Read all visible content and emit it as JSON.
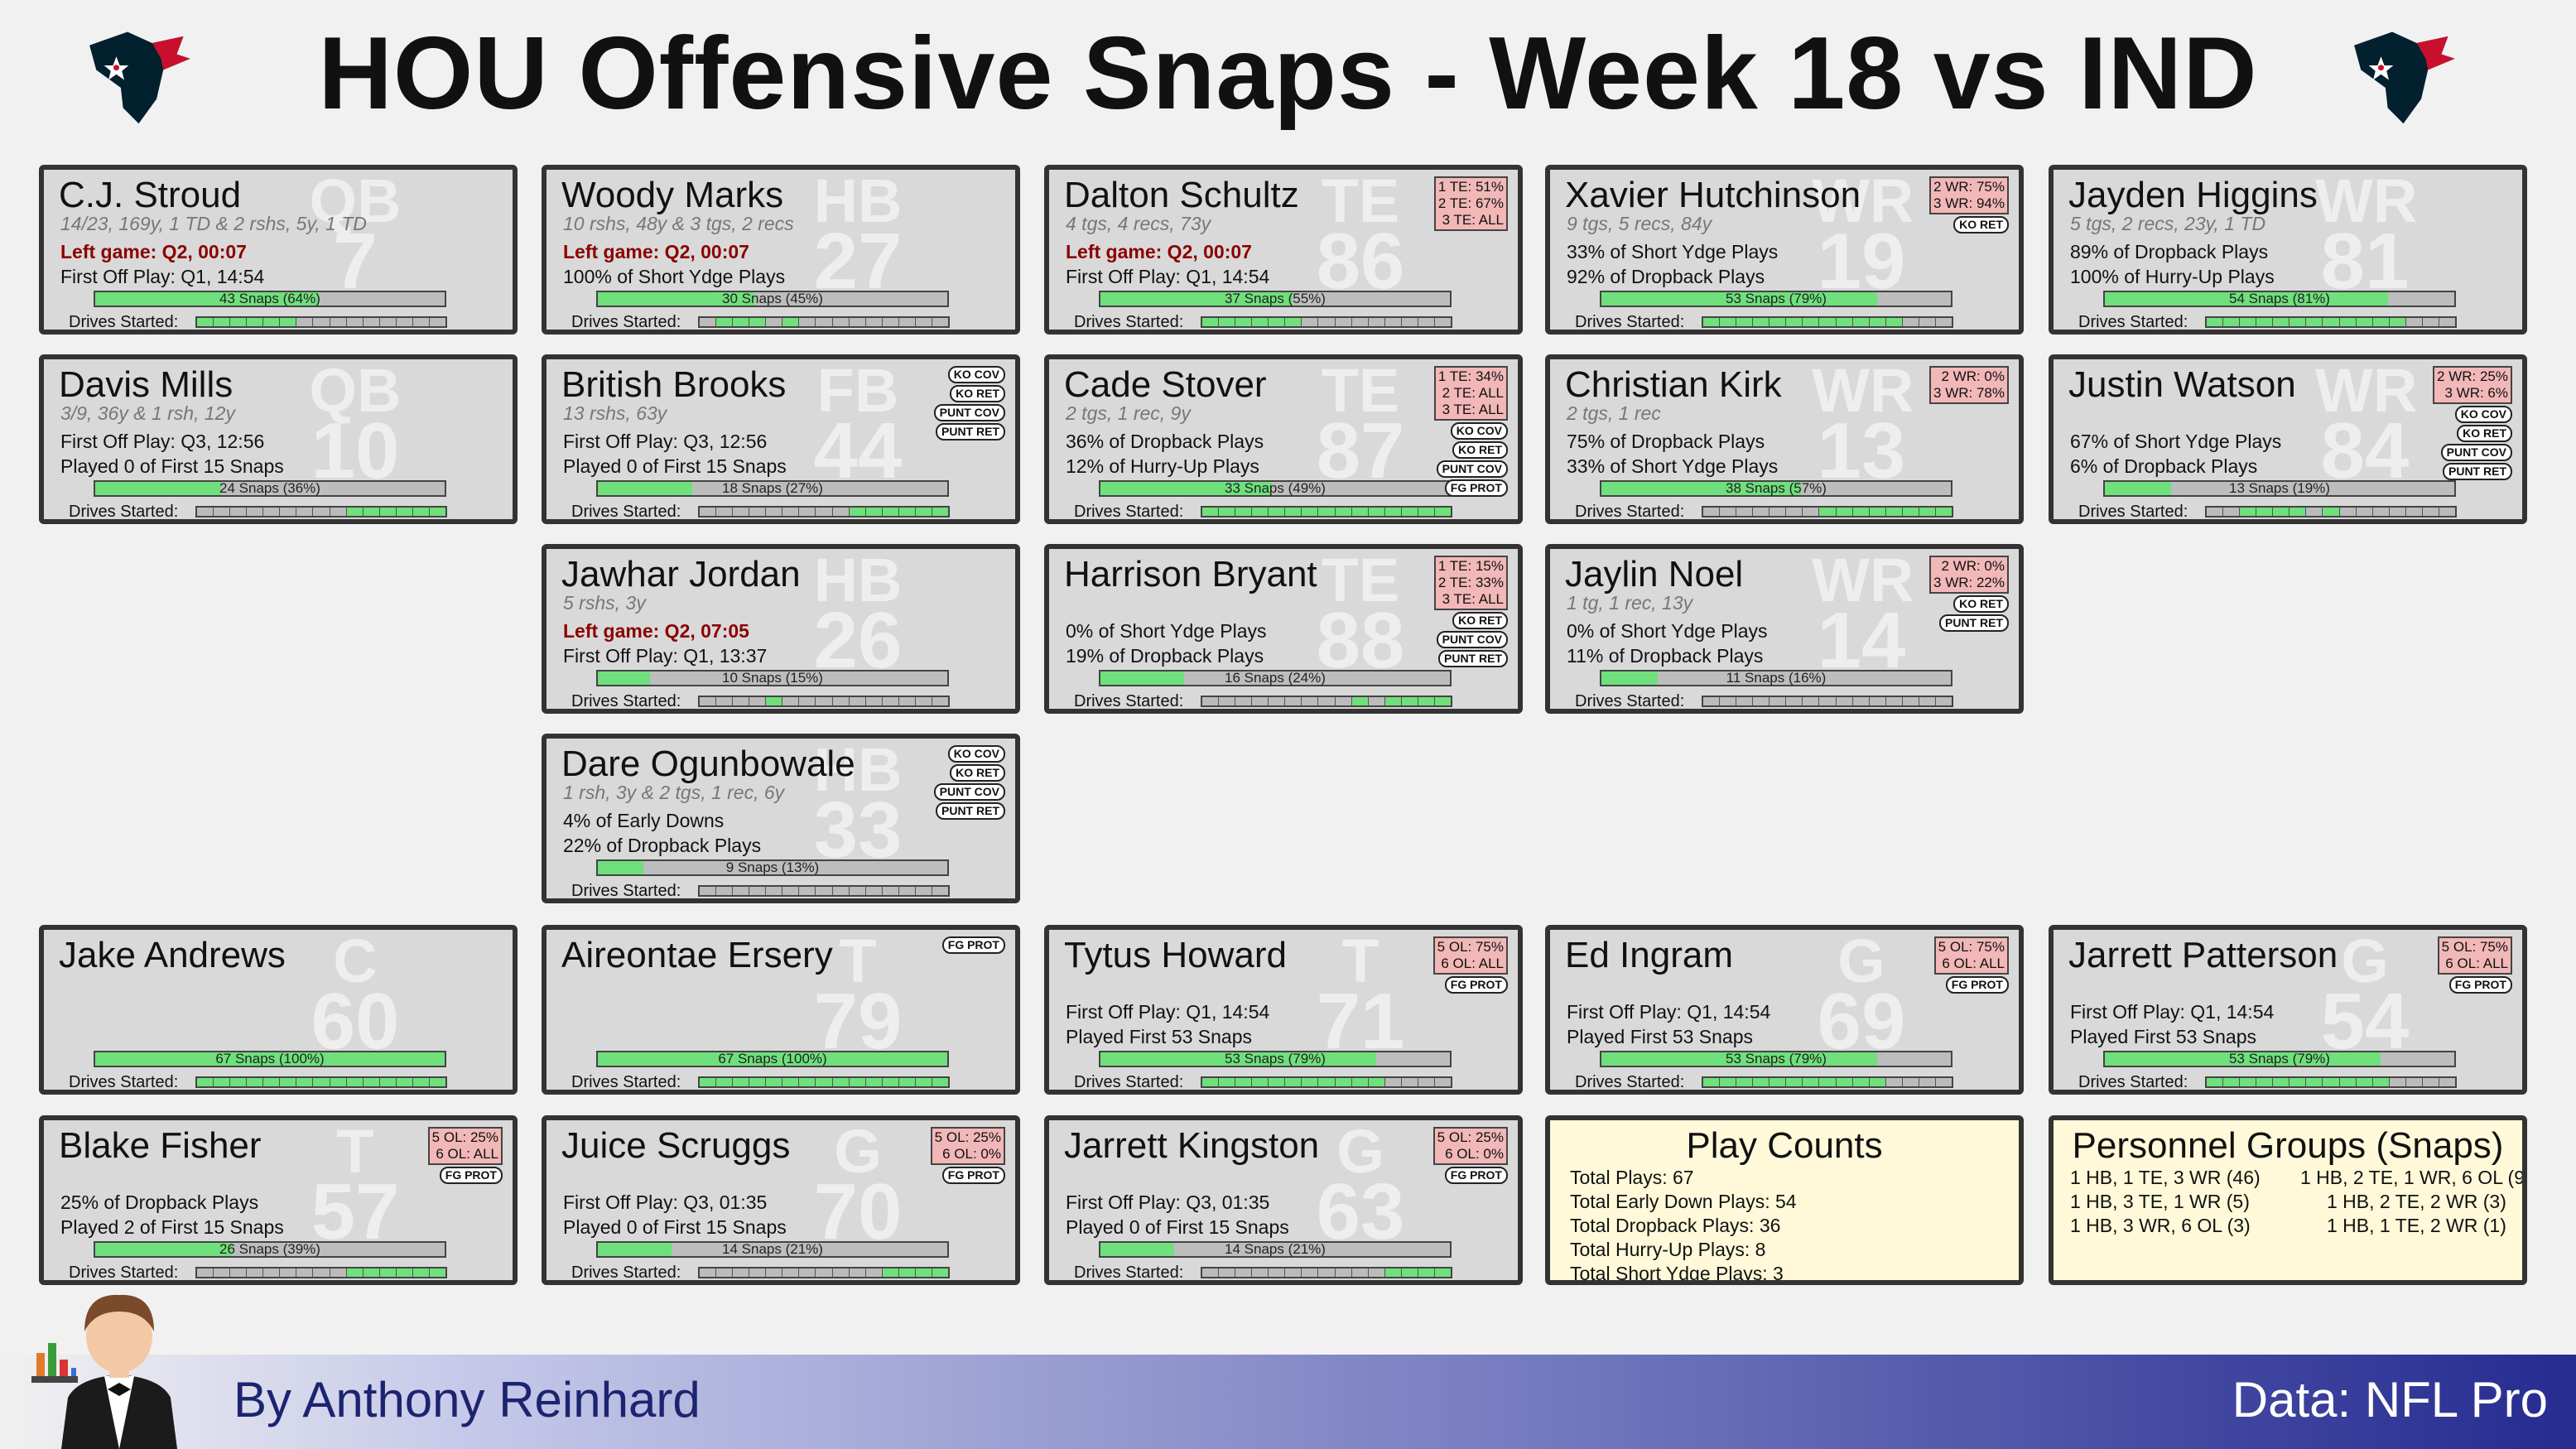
{
  "title": "HOU Offensive Snaps - Week 18 vs IND",
  "colors": {
    "snap_fill": "#6fe07c",
    "card_bg": "#d9d9d9",
    "pct_box": "#f2b7b7",
    "left_game": "#8b0000",
    "summary_bg": "#fff9d9",
    "footer_dark": "#262c90"
  },
  "players": [
    {
      "name": "C.J. Stroud",
      "pos": "QB",
      "num": "7",
      "lines": [
        {
          "t": "14/23, 169y, 1 TD & 2 rshs, 5y, 1 TD",
          "s": "stat"
        },
        {
          "t": "Left game: Q2, 00:07",
          "s": "left"
        },
        {
          "t": "First Off Play: Q1, 14:54",
          "s": "n"
        }
      ],
      "snaps": "43 Snaps (64%)",
      "snap_pct": 64,
      "drives": [
        1,
        1,
        1,
        1,
        1,
        1,
        0,
        0,
        0,
        0,
        0,
        0,
        0,
        0,
        0
      ],
      "pct_box": [],
      "badges": []
    },
    {
      "name": "Woody Marks",
      "pos": "HB",
      "num": "27",
      "lines": [
        {
          "t": "10 rshs, 48y & 3 tgs, 2 recs",
          "s": "stat"
        },
        {
          "t": "Left game: Q2, 00:07",
          "s": "left"
        },
        {
          "t": "100% of Short Ydge Plays",
          "s": "n"
        }
      ],
      "snaps": "30 Snaps (45%)",
      "snap_pct": 45,
      "drives": [
        0,
        1,
        1,
        1,
        0,
        1,
        0,
        0,
        0,
        0,
        0,
        0,
        0,
        0,
        0
      ],
      "pct_box": [],
      "badges": []
    },
    {
      "name": "Dalton Schultz",
      "pos": "TE",
      "num": "86",
      "lines": [
        {
          "t": "4 tgs, 4 recs, 73y",
          "s": "stat"
        },
        {
          "t": "Left game: Q2, 00:07",
          "s": "left"
        },
        {
          "t": "First Off Play: Q1, 14:54",
          "s": "n"
        }
      ],
      "snaps": "37 Snaps (55%)",
      "snap_pct": 55,
      "drives": [
        1,
        1,
        1,
        1,
        1,
        1,
        0,
        0,
        0,
        0,
        0,
        0,
        0,
        0,
        0
      ],
      "pct_box": [
        "1 TE: 51%",
        "2 TE: 67%",
        "3 TE: ALL"
      ],
      "badges": []
    },
    {
      "name": "Xavier Hutchinson",
      "pos": "WR",
      "num": "19",
      "lines": [
        {
          "t": "9 tgs, 5 recs, 84y",
          "s": "stat"
        },
        {
          "t": "33% of Short Ydge Plays",
          "s": "n"
        },
        {
          "t": "92% of Dropback Plays",
          "s": "n"
        }
      ],
      "snaps": "53 Snaps (79%)",
      "snap_pct": 79,
      "drives": [
        1,
        1,
        1,
        1,
        1,
        1,
        1,
        1,
        1,
        1,
        1,
        1,
        0,
        0,
        0
      ],
      "pct_box": [
        "2 WR: 75%",
        "3 WR: 94%"
      ],
      "badges": [
        "KO RET"
      ]
    },
    {
      "name": "Jayden Higgins",
      "pos": "WR",
      "num": "81",
      "lines": [
        {
          "t": "5 tgs, 2 recs, 23y, 1 TD",
          "s": "stat"
        },
        {
          "t": "89% of Dropback Plays",
          "s": "n"
        },
        {
          "t": "100% of Hurry-Up Plays",
          "s": "n"
        }
      ],
      "snaps": "54 Snaps (81%)",
      "snap_pct": 81,
      "drives": [
        1,
        1,
        1,
        1,
        1,
        1,
        1,
        1,
        1,
        1,
        1,
        1,
        0,
        0,
        0
      ],
      "pct_box": [],
      "badges": []
    },
    {
      "name": "Davis Mills",
      "pos": "QB",
      "num": "10",
      "lines": [
        {
          "t": "3/9, 36y & 1 rsh, 12y",
          "s": "stat"
        },
        {
          "t": "First Off Play: Q3, 12:56",
          "s": "n"
        },
        {
          "t": "Played 0 of First 15 Snaps",
          "s": "n"
        }
      ],
      "snaps": "24 Snaps (36%)",
      "snap_pct": 36,
      "drives": [
        0,
        0,
        0,
        0,
        0,
        0,
        0,
        0,
        0,
        1,
        1,
        1,
        1,
        1,
        1
      ],
      "pct_box": [],
      "badges": []
    },
    {
      "name": "British Brooks",
      "pos": "FB",
      "num": "44",
      "lines": [
        {
          "t": "13 rshs, 63y",
          "s": "stat"
        },
        {
          "t": "First Off Play: Q3, 12:56",
          "s": "n"
        },
        {
          "t": "Played 0 of First 15 Snaps",
          "s": "n"
        }
      ],
      "snaps": "18 Snaps (27%)",
      "snap_pct": 27,
      "drives": [
        0,
        0,
        0,
        0,
        0,
        0,
        0,
        0,
        0,
        1,
        1,
        1,
        1,
        1,
        1
      ],
      "pct_box": [],
      "badges": [
        "KO COV",
        "KO RET",
        "PUNT COV",
        "PUNT RET"
      ]
    },
    {
      "name": "Cade Stover",
      "pos": "TE",
      "num": "87",
      "lines": [
        {
          "t": "2 tgs, 1 rec, 9y",
          "s": "stat"
        },
        {
          "t": "36% of Dropback Plays",
          "s": "n"
        },
        {
          "t": "12% of Hurry-Up Plays",
          "s": "n"
        }
      ],
      "snaps": "33 Snaps (49%)",
      "snap_pct": 49,
      "drives": [
        1,
        1,
        1,
        1,
        1,
        1,
        1,
        1,
        1,
        1,
        1,
        1,
        1,
        1,
        1
      ],
      "pct_box": [
        "1 TE: 34%",
        "2 TE: ALL",
        "3 TE: ALL"
      ],
      "badges": [
        "KO COV",
        "KO RET",
        "PUNT COV",
        "FG PROT"
      ]
    },
    {
      "name": "Christian Kirk",
      "pos": "WR",
      "num": "13",
      "lines": [
        {
          "t": "2 tgs, 1 rec",
          "s": "stat"
        },
        {
          "t": "75% of Dropback Plays",
          "s": "n"
        },
        {
          "t": "33% of Short Ydge Plays",
          "s": "n"
        }
      ],
      "snaps": "38 Snaps (57%)",
      "snap_pct": 57,
      "drives": [
        0,
        0,
        0,
        0,
        0,
        0,
        0,
        1,
        1,
        1,
        1,
        1,
        1,
        1,
        1
      ],
      "pct_box": [
        "2 WR:  0%",
        "3 WR: 78%"
      ],
      "badges": []
    },
    {
      "name": "Justin Watson",
      "pos": "WR",
      "num": "84",
      "lines": [
        {
          "t": "67% of Short Ydge Plays",
          "s": "n"
        },
        {
          "t": "6% of Dropback Plays",
          "s": "n"
        }
      ],
      "snaps": "13 Snaps (19%)",
      "snap_pct": 19,
      "drives": [
        0,
        0,
        1,
        1,
        1,
        1,
        0,
        1,
        0,
        0,
        0,
        0,
        0,
        0,
        0
      ],
      "pct_box": [
        "2 WR: 25%",
        "3 WR:  6%"
      ],
      "badges": [
        "KO COV",
        "KO RET",
        "PUNT COV",
        "PUNT RET"
      ]
    },
    {
      "name": "Jawhar Jordan",
      "pos": "HB",
      "num": "26",
      "lines": [
        {
          "t": "5 rshs, 3y",
          "s": "stat"
        },
        {
          "t": "Left game: Q2, 07:05",
          "s": "left"
        },
        {
          "t": "First Off Play: Q1, 13:37",
          "s": "n"
        }
      ],
      "snaps": "10 Snaps (15%)",
      "snap_pct": 15,
      "drives": [
        0,
        0,
        0,
        0,
        1,
        0,
        0,
        0,
        0,
        0,
        0,
        0,
        0,
        0,
        0
      ],
      "pct_box": [],
      "badges": []
    },
    {
      "name": "Harrison Bryant",
      "pos": "TE",
      "num": "88",
      "lines": [
        {
          "t": "0% of Short Ydge Plays",
          "s": "n"
        },
        {
          "t": "19% of Dropback Plays",
          "s": "n"
        }
      ],
      "snaps": "16 Snaps (24%)",
      "snap_pct": 24,
      "drives": [
        0,
        0,
        0,
        0,
        0,
        0,
        0,
        0,
        0,
        1,
        0,
        1,
        1,
        1,
        1
      ],
      "pct_box": [
        "1 TE: 15%",
        "2 TE: 33%",
        "3 TE: ALL"
      ],
      "badges": [
        "KO RET",
        "PUNT COV",
        "PUNT RET"
      ]
    },
    {
      "name": "Jaylin Noel",
      "pos": "WR",
      "num": "14",
      "lines": [
        {
          "t": "1 tg, 1 rec, 13y",
          "s": "stat"
        },
        {
          "t": "0% of Short Ydge Plays",
          "s": "n"
        },
        {
          "t": "11% of Dropback Plays",
          "s": "n"
        }
      ],
      "snaps": "11 Snaps (16%)",
      "snap_pct": 16,
      "drives": [
        0,
        0,
        0,
        0,
        0,
        0,
        0,
        0,
        0,
        0,
        0,
        0,
        0,
        0,
        0
      ],
      "pct_box": [
        "2 WR:  0%",
        "3 WR: 22%"
      ],
      "badges": [
        "KO RET",
        "PUNT RET"
      ]
    },
    {
      "name": "Dare Ogunbowale",
      "pos": "HB",
      "num": "33",
      "lines": [
        {
          "t": "1 rsh, 3y & 2 tgs, 1 rec, 6y",
          "s": "stat"
        },
        {
          "t": "4% of Early Downs",
          "s": "n"
        },
        {
          "t": "22% of Dropback Plays",
          "s": "n"
        }
      ],
      "snaps": "9 Snaps (13%)",
      "snap_pct": 13,
      "drives": [
        0,
        0,
        0,
        0,
        0,
        0,
        0,
        0,
        0,
        0,
        0,
        0,
        0,
        0,
        0
      ],
      "pct_box": [],
      "badges": [
        "KO COV",
        "KO RET",
        "PUNT COV",
        "PUNT RET"
      ]
    },
    {
      "name": "Jake Andrews",
      "pos": "C",
      "num": "60",
      "lines": [],
      "snaps": "67 Snaps (100%)",
      "snap_pct": 100,
      "drives": [
        1,
        1,
        1,
        1,
        1,
        1,
        1,
        1,
        1,
        1,
        1,
        1,
        1,
        1,
        1
      ],
      "pct_box": [],
      "badges": []
    },
    {
      "name": "Aireontae Ersery",
      "pos": "T",
      "num": "79",
      "lines": [],
      "snaps": "67 Snaps (100%)",
      "snap_pct": 100,
      "drives": [
        1,
        1,
        1,
        1,
        1,
        1,
        1,
        1,
        1,
        1,
        1,
        1,
        1,
        1,
        1
      ],
      "pct_box": [],
      "badges": [
        "FG PROT"
      ]
    },
    {
      "name": "Tytus Howard",
      "pos": "T",
      "num": "71",
      "lines": [
        {
          "t": "",
          "s": "n"
        },
        {
          "t": "First Off Play: Q1, 14:54",
          "s": "n"
        },
        {
          "t": "Played First 53 Snaps",
          "s": "n"
        }
      ],
      "snaps": "53 Snaps (79%)",
      "snap_pct": 79,
      "drives": [
        1,
        1,
        1,
        1,
        1,
        1,
        1,
        1,
        1,
        1,
        1,
        0,
        0,
        0,
        0
      ],
      "pct_box": [
        "5 OL: 75%",
        "6 OL: ALL"
      ],
      "badges": [
        "FG PROT"
      ]
    },
    {
      "name": "Ed Ingram",
      "pos": "G",
      "num": "69",
      "lines": [
        {
          "t": "",
          "s": "n"
        },
        {
          "t": "First Off Play: Q1, 14:54",
          "s": "n"
        },
        {
          "t": "Played First 53 Snaps",
          "s": "n"
        }
      ],
      "snaps": "53 Snaps (79%)",
      "snap_pct": 79,
      "drives": [
        1,
        1,
        1,
        1,
        1,
        1,
        1,
        1,
        1,
        1,
        1,
        0,
        0,
        0,
        0
      ],
      "pct_box": [
        "5 OL: 75%",
        "6 OL: ALL"
      ],
      "badges": [
        "FG PROT"
      ]
    },
    {
      "name": "Jarrett Patterson",
      "pos": "G",
      "num": "54",
      "lines": [
        {
          "t": "",
          "s": "n"
        },
        {
          "t": "First Off Play: Q1, 14:54",
          "s": "n"
        },
        {
          "t": "Played First 53 Snaps",
          "s": "n"
        }
      ],
      "snaps": "53 Snaps (79%)",
      "snap_pct": 79,
      "drives": [
        1,
        1,
        1,
        1,
        1,
        1,
        1,
        1,
        1,
        1,
        1,
        0,
        0,
        0,
        0
      ],
      "pct_box": [
        "5 OL: 75%",
        "6 OL: ALL"
      ],
      "badges": [
        "FG PROT"
      ]
    },
    {
      "name": "Blake Fisher",
      "pos": "T",
      "num": "57",
      "lines": [
        {
          "t": "",
          "s": "n"
        },
        {
          "t": "25% of Dropback Plays",
          "s": "n"
        },
        {
          "t": "Played 2 of First 15 Snaps",
          "s": "n"
        }
      ],
      "snaps": "26 Snaps (39%)",
      "snap_pct": 39,
      "drives": [
        0,
        0,
        0,
        0,
        0,
        0,
        0,
        0,
        0,
        1,
        1,
        1,
        1,
        1,
        1
      ],
      "pct_box": [
        "5 OL: 25%",
        "6 OL: ALL"
      ],
      "badges": [
        "FG PROT"
      ]
    },
    {
      "name": "Juice Scruggs",
      "pos": "G",
      "num": "70",
      "lines": [
        {
          "t": "",
          "s": "n"
        },
        {
          "t": "First Off Play: Q3, 01:35",
          "s": "n"
        },
        {
          "t": "Played 0 of First 15 Snaps",
          "s": "n"
        }
      ],
      "snaps": "14 Snaps (21%)",
      "snap_pct": 21,
      "drives": [
        0,
        0,
        0,
        0,
        0,
        0,
        0,
        0,
        0,
        0,
        0,
        1,
        1,
        1,
        1
      ],
      "pct_box": [
        "5 OL: 25%",
        "6 OL:  0%"
      ],
      "badges": [
        "FG PROT"
      ]
    },
    {
      "name": "Jarrett Kingston",
      "pos": "G",
      "num": "63",
      "lines": [
        {
          "t": "",
          "s": "n"
        },
        {
          "t": "First Off Play: Q3, 01:35",
          "s": "n"
        },
        {
          "t": "Played 0 of First 15 Snaps",
          "s": "n"
        }
      ],
      "snaps": "14 Snaps (21%)",
      "snap_pct": 21,
      "drives": [
        0,
        0,
        0,
        0,
        0,
        0,
        0,
        0,
        0,
        0,
        0,
        1,
        1,
        1,
        1
      ],
      "pct_box": [
        "5 OL: 25%",
        "6 OL:  0%"
      ],
      "badges": [
        "FG PROT"
      ]
    }
  ],
  "play_counts": {
    "title": "Play Counts",
    "lines": [
      "Total Plays: 67",
      "Total Early Down Plays: 54",
      "Total Dropback Plays: 36",
      "Total Hurry-Up Plays: 8",
      "Total Short Ydge Plays: 3"
    ]
  },
  "personnel": {
    "title": "Personnel Groups (Snaps)",
    "left": [
      "1 HB, 1 TE, 3 WR (46)",
      "1 HB, 3 TE, 1 WR (5)",
      "1 HB, 3 WR, 6 OL (3)"
    ],
    "right": [
      "1 HB, 2 TE, 1 WR, 6 OL (9",
      "1 HB, 2 TE, 2 WR (3)",
      "1 HB, 1 TE, 2 WR (1)"
    ]
  },
  "drives_label": "Drives Started:",
  "footer": {
    "byline": "By Anthony Reinhard",
    "source": "Data: NFL Pro"
  }
}
